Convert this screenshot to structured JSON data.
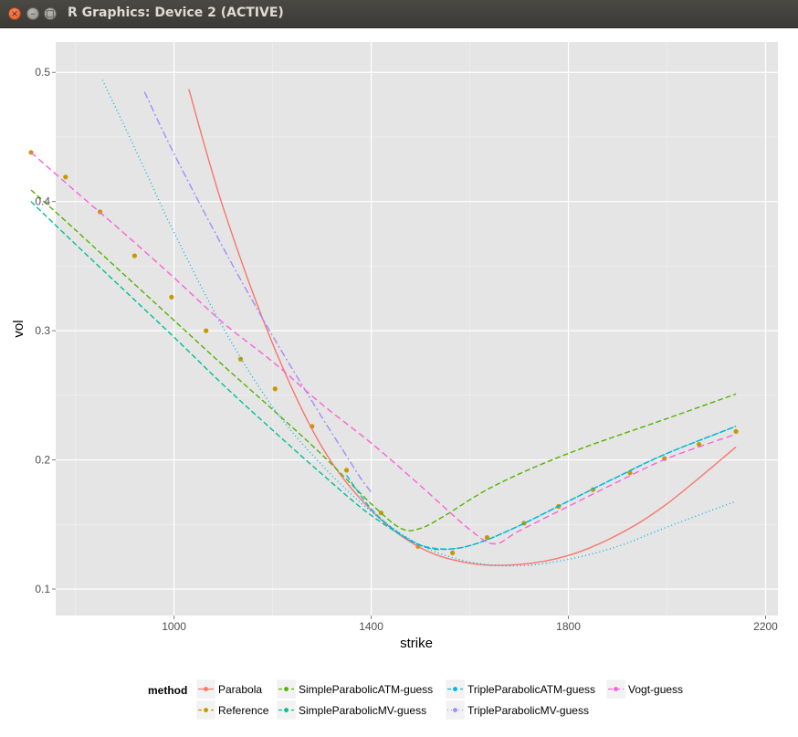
{
  "window": {
    "title": "R Graphics: Device 2 (ACTIVE)",
    "close_glyph": "×",
    "min_glyph": "–",
    "max_glyph": "□"
  },
  "chart_data": {
    "type": "line",
    "xlabel": "strike",
    "ylabel": "vol",
    "xlim": [
      760,
      2225
    ],
    "ylim": [
      0.0795,
      0.5235
    ],
    "x_ticks": [
      1000,
      1400,
      1800,
      2200
    ],
    "y_ticks": [
      0.1,
      0.2,
      0.3,
      0.4,
      0.5
    ],
    "grid": true,
    "panel_color": "#e5e5e5",
    "legend": {
      "title": "method",
      "position": "bottom",
      "entries": [
        {
          "name": "Parabola",
          "color": "#F8766D",
          "dash": ""
        },
        {
          "name": "Reference",
          "color": "#C49A00",
          "dash": "4 3"
        },
        {
          "name": "SimpleParabolicATM-guess",
          "color": "#53B400",
          "dash": "4 3"
        },
        {
          "name": "SimpleParabolicMV-guess",
          "color": "#00C094",
          "dash": "4 3"
        },
        {
          "name": "TripleParabolicATM-guess",
          "color": "#00B6EB",
          "dash": "4 3"
        },
        {
          "name": "TripleParabolicMV-guess",
          "color": "#A58AFF",
          "dash": "1 3"
        },
        {
          "name": "Vogt-guess",
          "color": "#FB61D7",
          "dash": "5 3"
        }
      ]
    },
    "series": [
      {
        "name": "Reference",
        "marker": "point",
        "color": "#C49A00",
        "x": [
          710,
          780,
          850,
          920,
          995,
          1065,
          1135,
          1205,
          1280,
          1350,
          1420,
          1495,
          1565,
          1635,
          1710,
          1780,
          1850,
          1925,
          1995,
          2065,
          2140
        ],
        "y": [
          0.438,
          0.419,
          0.392,
          0.358,
          0.326,
          0.3,
          0.278,
          0.255,
          0.226,
          0.192,
          0.159,
          0.133,
          0.128,
          0.14,
          0.151,
          0.164,
          0.177,
          0.19,
          0.201,
          0.212,
          0.222
        ]
      },
      {
        "name": "Parabola",
        "color": "#F8766D",
        "dash": "",
        "x": [
          1030,
          1100,
          1200,
          1300,
          1400,
          1500,
          1600,
          1700,
          1800,
          1900,
          2000,
          2140
        ],
        "y": [
          0.487,
          0.395,
          0.29,
          0.21,
          0.161,
          0.132,
          0.12,
          0.119,
          0.126,
          0.142,
          0.166,
          0.21
        ]
      },
      {
        "name": "SimpleParabolicATM-guess",
        "color": "#53B400",
        "dash": "6 3",
        "x": [
          710,
          800,
          900,
          1000,
          1100,
          1200,
          1300,
          1400,
          1460,
          1500,
          1550,
          1650,
          1800,
          2000,
          2140
        ],
        "y": [
          0.409,
          0.378,
          0.343,
          0.308,
          0.273,
          0.239,
          0.204,
          0.166,
          0.147,
          0.147,
          0.157,
          0.18,
          0.205,
          0.232,
          0.251
        ]
      },
      {
        "name": "SimpleParabolicMV-guess",
        "color": "#00C094",
        "dash": "6 3",
        "x": [
          710,
          800,
          900,
          1000,
          1100,
          1200,
          1300,
          1400,
          1500,
          1560,
          1620,
          1700,
          1800,
          1900,
          2000,
          2140
        ],
        "y": [
          0.4,
          0.367,
          0.331,
          0.295,
          0.258,
          0.223,
          0.189,
          0.157,
          0.134,
          0.131,
          0.136,
          0.149,
          0.168,
          0.187,
          0.205,
          0.226
        ]
      },
      {
        "name": "TripleParabolicATM-guess",
        "color": "#00B6EB",
        "dash": "6 3",
        "x": [
          1350,
          1400,
          1450,
          1500,
          1560,
          1620,
          1700,
          1800,
          1900,
          2000,
          2140
        ],
        "y": [
          0.188,
          0.162,
          0.145,
          0.134,
          0.131,
          0.136,
          0.149,
          0.168,
          0.187,
          0.205,
          0.226
        ]
      },
      {
        "name": "TripleParabolicATM-guess (dotted)",
        "color": "#00B6EB",
        "dash": "1 3",
        "x": [
          855,
          900,
          950,
          1000,
          1100,
          1200,
          1300,
          1400,
          1500,
          1600,
          1700,
          1800,
          1900,
          2000,
          2140
        ],
        "y": [
          0.494,
          0.458,
          0.417,
          0.376,
          0.302,
          0.241,
          0.196,
          0.16,
          0.134,
          0.121,
          0.118,
          0.123,
          0.133,
          0.148,
          0.168
        ]
      },
      {
        "name": "TripleParabolicMV-guess",
        "color": "#A58AFF",
        "dash": "8 3 2 3",
        "x": [
          940,
          1000,
          1100,
          1200,
          1300,
          1350,
          1380,
          1400
        ],
        "y": [
          0.485,
          0.437,
          0.364,
          0.296,
          0.233,
          0.203,
          0.185,
          0.175
        ]
      },
      {
        "name": "Vogt-guess",
        "color": "#FB61D7",
        "dash": "7 4",
        "x": [
          710,
          800,
          900,
          1000,
          1100,
          1200,
          1300,
          1400,
          1500,
          1600,
          1650,
          1700,
          1800,
          1900,
          2000,
          2140
        ],
        "y": [
          0.438,
          0.408,
          0.375,
          0.341,
          0.306,
          0.276,
          0.243,
          0.213,
          0.18,
          0.146,
          0.135,
          0.145,
          0.164,
          0.183,
          0.201,
          0.22
        ]
      }
    ]
  }
}
